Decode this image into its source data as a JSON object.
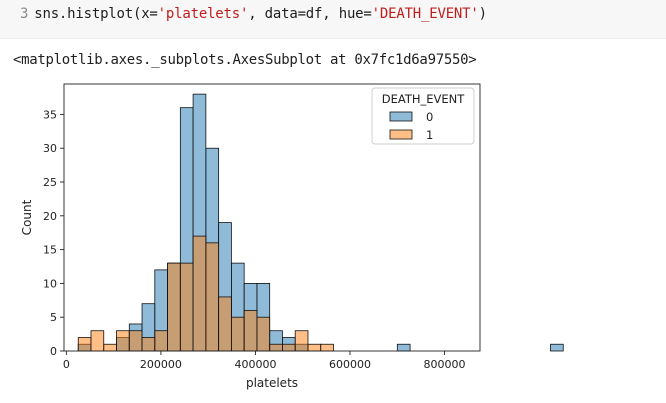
{
  "code_cell": {
    "line_number": "3",
    "code_prefix": "sns.histplot(x=",
    "code_arg1": "'platelets'",
    "code_mid": ", data=df, hue=",
    "code_arg2": "'DEATH_EVENT'",
    "code_suffix": ")"
  },
  "output": {
    "text": "<matplotlib.axes._subplots.AxesSubplot at 0x7fc1d6a97550>"
  },
  "colors": {
    "series_0": "#1f77b4",
    "series_1": "#ff7f0e",
    "overlap": "#6f8192",
    "code_string": "#c21d1d"
  },
  "chart_data": {
    "type": "bar",
    "title": "",
    "xlabel": "platelets",
    "ylabel": "Count",
    "xlim": [
      -5000,
      875000
    ],
    "ylim": [
      0,
      39.5
    ],
    "xticks": [
      0,
      200000,
      400000,
      600000,
      800000
    ],
    "xtick_labels": [
      "0",
      "200000",
      "400000",
      "600000",
      "800000"
    ],
    "yticks": [
      0,
      5,
      10,
      15,
      20,
      25,
      30,
      35
    ],
    "bin_start": 25100,
    "bin_width": 27000,
    "legend": {
      "title": "DEATH_EVENT",
      "position": "top-right"
    },
    "series": [
      {
        "name": "0",
        "values": [
          1,
          0,
          0,
          2,
          4,
          7,
          12,
          13,
          36,
          38,
          30,
          19,
          13,
          10,
          10,
          3,
          2,
          1,
          0,
          0,
          0,
          0,
          0,
          0,
          0,
          1,
          0,
          0,
          0,
          0,
          0,
          0,
          0,
          0,
          0,
          0,
          0,
          1
        ]
      },
      {
        "name": "1",
        "values": [
          2,
          3,
          1,
          3,
          3,
          2,
          3,
          13,
          13,
          17,
          16,
          8,
          5,
          6,
          5,
          1,
          1,
          3,
          1,
          1,
          0,
          0,
          0,
          0,
          0,
          0,
          0,
          0,
          0,
          0,
          0,
          0,
          0,
          0,
          0,
          0,
          0,
          0
        ]
      }
    ]
  }
}
